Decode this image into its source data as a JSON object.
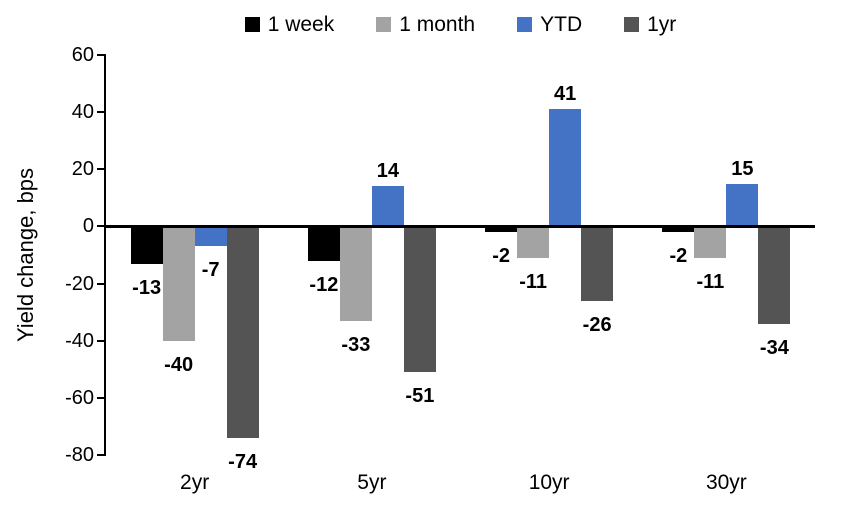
{
  "chart_data": {
    "type": "bar",
    "title": "",
    "xlabel": "",
    "ylabel": "Yield change, bps",
    "categories": [
      "2yr",
      "5yr",
      "10yr",
      "30yr"
    ],
    "series": [
      {
        "name": "1 week",
        "color": "#000000",
        "values": [
          -13,
          -12,
          -2,
          -2
        ]
      },
      {
        "name": "1 month",
        "color": "#A3A3A3",
        "values": [
          -40,
          -33,
          -11,
          -11
        ]
      },
      {
        "name": "YTD",
        "color": "#4472C4",
        "values": [
          -7,
          14,
          41,
          15
        ]
      },
      {
        "name": "1yr",
        "color": "#545454",
        "values": [
          -74,
          -51,
          -26,
          -34
        ]
      }
    ],
    "ylim": [
      -80,
      60
    ],
    "yticks": [
      60,
      40,
      20,
      0,
      -20,
      -40,
      -60,
      -80
    ],
    "grid": false,
    "legend_position": "top",
    "data_labels": true,
    "axis_color": "#000000"
  }
}
